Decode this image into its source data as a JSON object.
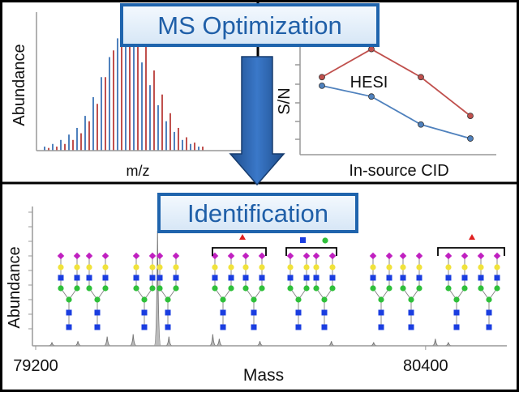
{
  "ms_optimization": {
    "title": "MS Optimization",
    "spectrum": {
      "y_label": "Abundance",
      "x_label": "m/z",
      "series": [
        {
          "color": "#4f81bd",
          "values": [
            3,
            5,
            8,
            12,
            17,
            26,
            40,
            55,
            70,
            84,
            88,
            80,
            66,
            49,
            34,
            22,
            14,
            8,
            5,
            3
          ]
        },
        {
          "color": "#c0504d",
          "values": [
            2,
            3,
            5,
            8,
            13,
            22,
            35,
            55,
            75,
            92,
            100,
            95,
            80,
            60,
            42,
            28,
            17,
            10,
            6,
            3
          ]
        }
      ]
    },
    "signal_plot": {
      "y_label": "S/N",
      "x_label": "In-source CID",
      "annotation": "HESI",
      "ylim": [
        0,
        100
      ],
      "series": [
        {
          "color": "#c0504d",
          "values": [
            72,
            98,
            72,
            36
          ]
        },
        {
          "color": "#4f81bd",
          "values": [
            64,
            54,
            28,
            15
          ]
        }
      ]
    }
  },
  "identification": {
    "title": "Identification",
    "y_label": "Abundance",
    "x_label": "Mass",
    "xlim": [
      79190,
      80650
    ],
    "xticks": [
      79200,
      80400
    ],
    "peaks": {
      "masses": [
        79250,
        79330,
        79420,
        79500,
        79575,
        79610,
        79745,
        79765,
        79890,
        80110,
        80240,
        80430,
        80470
      ],
      "heights": [
        3,
        4,
        8,
        10,
        100,
        8,
        10,
        6,
        4,
        4,
        3,
        6,
        3
      ]
    }
  }
}
